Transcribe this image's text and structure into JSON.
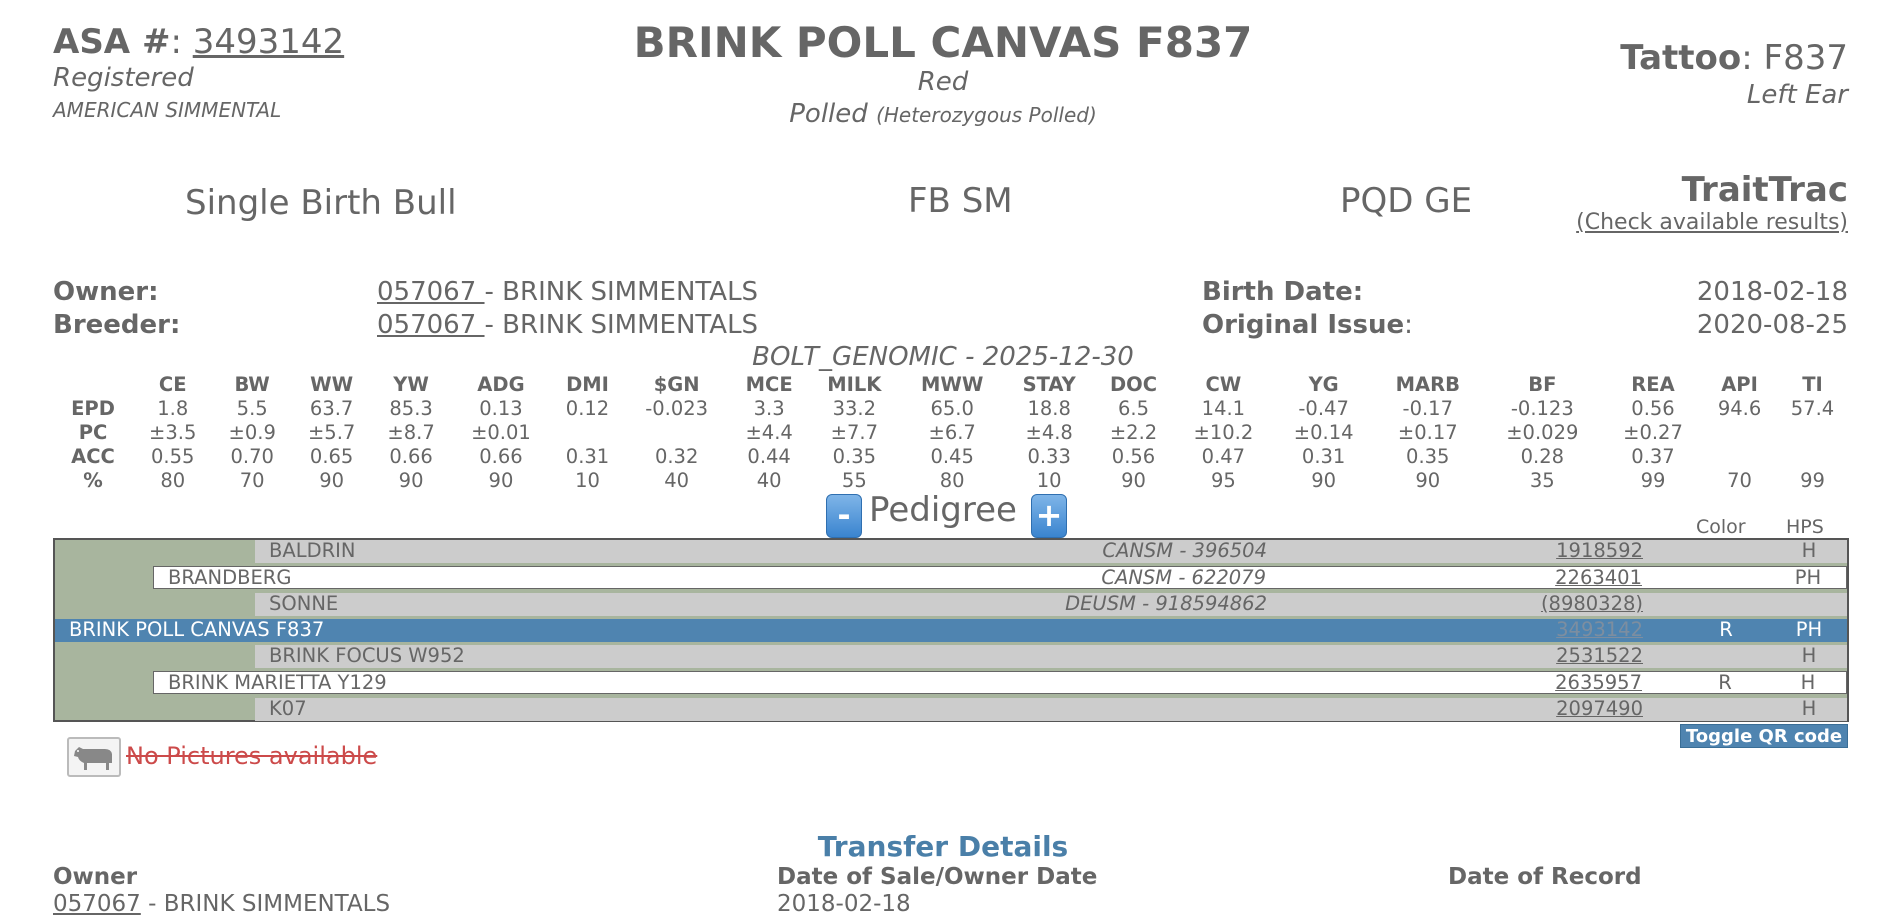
{
  "header": {
    "asa_label": "ASA #",
    "asa_number": "3493142",
    "status": "Registered",
    "breed": "AMERICAN SIMMENTAL",
    "name": "BRINK POLL CANVAS F837",
    "color": "Red",
    "polled": "Polled",
    "polled_detail": "(Heterozygous Polled)",
    "tattoo_label": "Tattoo",
    "tattoo": "F837",
    "tattoo_location": "Left Ear"
  },
  "info": {
    "birth_type": "Single Birth Bull",
    "herdbook": "FB SM",
    "genotype": "PQD GE",
    "traittrac_title": "TraitTrac",
    "traittrac_link": "(Check available results)"
  },
  "owner": {
    "owner_label": "Owner:",
    "owner_id": "057067 ",
    "owner_name": " - BRINK SIMMENTALS",
    "breeder_label": "Breeder:",
    "breeder_id": "057067 ",
    "breeder_name": " - BRINK SIMMENTALS",
    "birth_date_label": "Birth Date:",
    "birth_date": "2018-02-18",
    "original_issue_label": "Original Issue",
    "original_issue": "2020-08-25"
  },
  "epd": {
    "source": "BOLT_GENOMIC - 2025-12-30",
    "columns": [
      "CE",
      "BW",
      "WW",
      "YW",
      "ADG",
      "DMI",
      "$GN",
      "MCE",
      "MILK",
      "MWW",
      "STAY",
      "DOC",
      "CW",
      "YG",
      "MARB",
      "BF",
      "REA",
      "API",
      "TI"
    ],
    "rows": [
      {
        "label": "EPD",
        "values": [
          "1.8",
          "5.5",
          "63.7",
          "85.3",
          "0.13",
          "0.12",
          "-0.023",
          "3.3",
          "33.2",
          "65.0",
          "18.8",
          "6.5",
          "14.1",
          "-0.47",
          "-0.17",
          "-0.123",
          "0.56",
          "94.6",
          "57.4"
        ]
      },
      {
        "label": "PC",
        "values": [
          "±3.5",
          "±0.9",
          "±5.7",
          "±8.7",
          "±0.01",
          "",
          "",
          "±4.4",
          "±7.7",
          "±6.7",
          "±4.8",
          "±2.2",
          "±10.2",
          "±0.14",
          "±0.17",
          "±0.029",
          "±0.27",
          "",
          ""
        ]
      },
      {
        "label": "ACC",
        "values": [
          "0.55",
          "0.70",
          "0.65",
          "0.66",
          "0.66",
          "0.31",
          "0.32",
          "0.44",
          "0.35",
          "0.45",
          "0.33",
          "0.56",
          "0.47",
          "0.31",
          "0.35",
          "0.28",
          "0.37",
          "",
          ""
        ]
      },
      {
        "label": "%",
        "values": [
          "80",
          "70",
          "90",
          "90",
          "90",
          "10",
          "40",
          "40",
          "55",
          "80",
          "10",
          "90",
          "95",
          "90",
          "90",
          "35",
          "99",
          "70",
          "99"
        ]
      }
    ]
  },
  "pedigree": {
    "title": "Pedigree",
    "minus": "-",
    "plus": "+",
    "color_header": "Color",
    "hps_header": "HPS",
    "rows": [
      {
        "name": "BALDRIN",
        "reg": "CANSM - 396504",
        "id": "1918592",
        "color": "",
        "hps": "H"
      },
      {
        "name": "BRANDBERG",
        "reg": "CANSM - 622079",
        "id": "2263401",
        "color": "",
        "hps": "PH"
      },
      {
        "name": "SONNE",
        "reg": "DEUSM - 918594862",
        "id": "(8980328)",
        "color": "",
        "hps": ""
      },
      {
        "name": "BRINK POLL CANVAS F837",
        "reg": "",
        "id": "3493142",
        "color": "R",
        "hps": "PH"
      },
      {
        "name": "BRINK FOCUS W952",
        "reg": "",
        "id": "2531522",
        "color": "",
        "hps": "H"
      },
      {
        "name": "BRINK MARIETTA Y129",
        "reg": "",
        "id": "2635957",
        "color": "R",
        "hps": "H"
      },
      {
        "name": "K07",
        "reg": "",
        "id": "2097490",
        "color": "",
        "hps": "H"
      }
    ]
  },
  "pictures": {
    "qr_button": "Toggle QR code",
    "no_pictures": "No Pictures available",
    "icon": "cow-icon"
  },
  "transfer": {
    "title": "Transfer Details",
    "owner_label": "Owner",
    "date_label": "Date of Sale/Owner Date",
    "record_label": "Date of Record",
    "owner_id": "057067",
    "owner_name": " - BRINK SIMMENTALS",
    "date": "2018-02-18"
  }
}
